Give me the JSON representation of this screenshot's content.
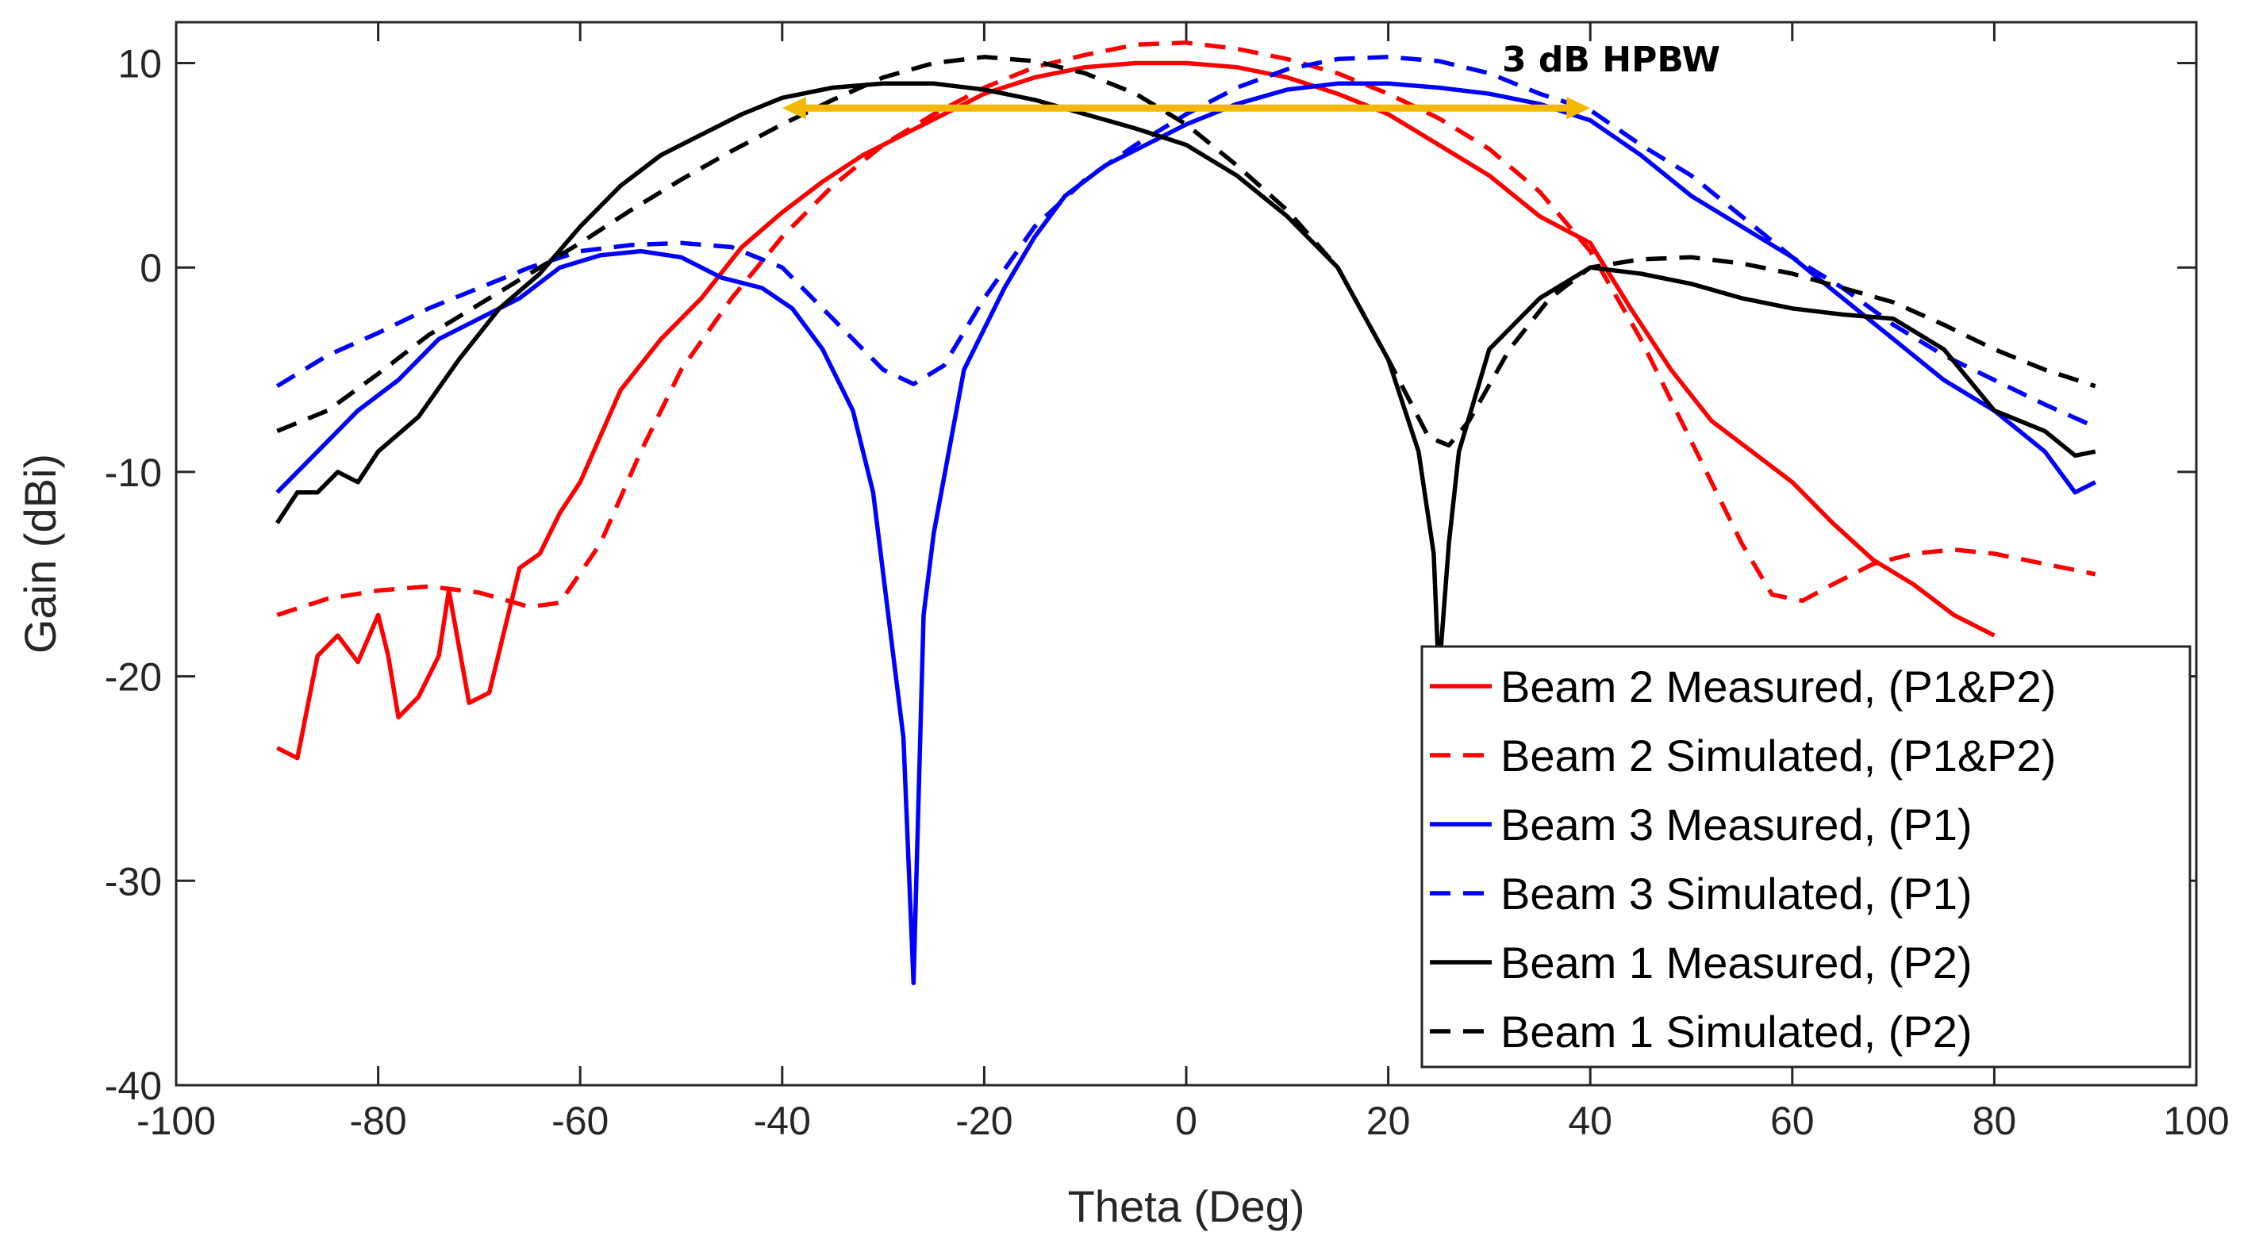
{
  "chart_data": {
    "type": "line",
    "title": "",
    "xlabel": "Theta (Deg)",
    "ylabel": "Gain (dBi)",
    "xlim": [
      -100,
      100
    ],
    "ylim": [
      -40,
      12
    ],
    "xticks": [
      -100,
      -80,
      -60,
      -40,
      -20,
      0,
      20,
      40,
      60,
      80,
      100
    ],
    "yticks": [
      -40,
      -30,
      -20,
      -10,
      0,
      10
    ],
    "grid": false,
    "legend_position": "bottom-right",
    "annotation": {
      "text": "3 dB HPBW",
      "x_start": -40,
      "x_end": 40,
      "y": 7.8,
      "color": "#f5b800"
    },
    "series": [
      {
        "name": "Beam 2 Measured, (P1&P2)",
        "color": "#ff0000",
        "style": "solid",
        "x": [
          -90,
          -88,
          -86,
          -84,
          -82,
          -80,
          -79,
          -78,
          -76,
          -74,
          -73,
          -71,
          -69,
          -66,
          -64,
          -62,
          -60,
          -56,
          -52,
          -48,
          -44,
          -40,
          -36,
          -32,
          -28,
          -24,
          -20,
          -15,
          -10,
          -5,
          0,
          5,
          10,
          15,
          20,
          25,
          30,
          35,
          40,
          44,
          48,
          52,
          56,
          60,
          64,
          68,
          72,
          76,
          80
        ],
        "y": [
          -23.5,
          -24,
          -19,
          -18,
          -19.3,
          -17,
          -19,
          -22,
          -21,
          -19,
          -15.8,
          -21.3,
          -20.8,
          -14.7,
          -14,
          -12,
          -10.5,
          -6,
          -3.5,
          -1.5,
          1,
          2.7,
          4.2,
          5.5,
          6.5,
          7.5,
          8.5,
          9.3,
          9.8,
          10,
          10,
          9.8,
          9.3,
          8.5,
          7.5,
          6,
          4.5,
          2.5,
          1.2,
          -2,
          -5,
          -7.5,
          -9,
          -10.5,
          -12.5,
          -14.3,
          -15.5,
          -17,
          -18
        ]
      },
      {
        "name": "Beam 2 Simulated, (P1&P2)",
        "color": "#ff0000",
        "style": "dashed",
        "x": [
          -90,
          -85,
          -80,
          -75,
          -70,
          -65,
          -62,
          -58,
          -54,
          -50,
          -45,
          -40,
          -35,
          -30,
          -25,
          -20,
          -15,
          -10,
          -5,
          0,
          5,
          10,
          15,
          20,
          25,
          30,
          35,
          40,
          45,
          50,
          55,
          58,
          61,
          64,
          68,
          72,
          76,
          80,
          85,
          90
        ],
        "y": [
          -17,
          -16.2,
          -15.8,
          -15.6,
          -15.9,
          -16.6,
          -16.4,
          -13.5,
          -9,
          -5,
          -1.5,
          1.5,
          4,
          6,
          7.5,
          8.8,
          9.8,
          10.4,
          10.9,
          11,
          10.7,
          10.2,
          9.5,
          8.5,
          7.3,
          5.8,
          3.7,
          0.8,
          -3.5,
          -8.5,
          -13.5,
          -16,
          -16.3,
          -15.5,
          -14.5,
          -14,
          -13.8,
          -14,
          -14.5,
          -15
        ]
      },
      {
        "name": "Beam 3 Measured, (P1)",
        "color": "#0000ff",
        "style": "solid",
        "x": [
          -90,
          -86,
          -82,
          -78,
          -74,
          -70,
          -66,
          -62,
          -58,
          -54,
          -50,
          -46,
          -42,
          -39,
          -36,
          -33,
          -31,
          -29.5,
          -28,
          -27,
          -26,
          -25,
          -22,
          -18,
          -15,
          -12,
          -8,
          -4,
          0,
          5,
          10,
          15,
          20,
          25,
          30,
          35,
          40,
          45,
          50,
          55,
          60,
          65,
          70,
          75,
          80,
          85,
          88,
          90
        ],
        "y": [
          -11,
          -9,
          -7,
          -5.5,
          -3.5,
          -2.5,
          -1.5,
          0,
          0.6,
          0.8,
          0.5,
          -0.5,
          -1,
          -2,
          -4,
          -7,
          -11,
          -17,
          -23,
          -35,
          -17,
          -13,
          -5,
          -1,
          1.5,
          3.5,
          5,
          6,
          7,
          8,
          8.7,
          9,
          9,
          8.8,
          8.5,
          8,
          7.2,
          5.5,
          3.5,
          2,
          0.5,
          -1.5,
          -3.5,
          -5.5,
          -7,
          -9,
          -11,
          -10.5
        ]
      },
      {
        "name": "Beam 3 Simulated, (P1)",
        "color": "#0000ff",
        "style": "dashed",
        "x": [
          -90,
          -85,
          -80,
          -75,
          -70,
          -65,
          -60,
          -55,
          -50,
          -45,
          -40,
          -35,
          -30,
          -27,
          -24,
          -20,
          -15,
          -10,
          -5,
          0,
          5,
          10,
          15,
          20,
          25,
          30,
          35,
          40,
          45,
          50,
          55,
          60,
          65,
          70,
          75,
          80,
          85,
          90
        ],
        "y": [
          -5.8,
          -4.3,
          -3.2,
          -2,
          -1,
          0,
          0.8,
          1.1,
          1.2,
          1,
          0,
          -2.5,
          -5,
          -5.7,
          -4.8,
          -1.5,
          2,
          4.3,
          6,
          7.5,
          8.8,
          9.7,
          10.2,
          10.3,
          10.1,
          9.5,
          8.5,
          7.7,
          6,
          4.5,
          2.5,
          0.5,
          -1,
          -2.8,
          -4.3,
          -5.5,
          -6.7,
          -7.8
        ]
      },
      {
        "name": "Beam 1 Measured, (P2)",
        "color": "#000000",
        "style": "solid",
        "x": [
          -90,
          -88,
          -86,
          -84,
          -82,
          -80,
          -76,
          -72,
          -68,
          -64,
          -60,
          -56,
          -52,
          -48,
          -44,
          -40,
          -35,
          -30,
          -25,
          -20,
          -15,
          -10,
          -5,
          0,
          5,
          10,
          15,
          20,
          23,
          24.5,
          25,
          26,
          27,
          30,
          35,
          40,
          45,
          50,
          55,
          60,
          65,
          70,
          75,
          80,
          85,
          88,
          90
        ],
        "y": [
          -12.5,
          -11,
          -11,
          -10,
          -10.5,
          -9,
          -7.3,
          -4.5,
          -2,
          -0.3,
          2,
          4,
          5.5,
          6.5,
          7.5,
          8.3,
          8.8,
          9,
          9,
          8.7,
          8.2,
          7.5,
          6.8,
          6,
          4.5,
          2.5,
          0,
          -4.5,
          -9,
          -14,
          -20,
          -13.5,
          -9,
          -4,
          -1.5,
          0,
          -0.3,
          -0.8,
          -1.5,
          -2,
          -2.3,
          -2.5,
          -4,
          -7,
          -8,
          -9.2,
          -9
        ]
      },
      {
        "name": "Beam 1 Simulated, (P2)",
        "color": "#000000",
        "style": "dashed",
        "x": [
          -90,
          -85,
          -80,
          -75,
          -70,
          -65,
          -60,
          -55,
          -50,
          -45,
          -40,
          -35,
          -30,
          -25,
          -20,
          -15,
          -10,
          -5,
          0,
          5,
          10,
          15,
          20,
          24,
          26,
          28,
          32,
          36,
          40,
          45,
          50,
          55,
          60,
          65,
          70,
          75,
          80,
          85,
          90
        ],
        "y": [
          -8,
          -7,
          -5.2,
          -3.3,
          -1.8,
          -0.3,
          1.2,
          2.8,
          4.3,
          5.7,
          7,
          8.2,
          9.3,
          10,
          10.3,
          10.1,
          9.5,
          8.5,
          7,
          5,
          2.8,
          0,
          -4.5,
          -8.3,
          -8.7,
          -7.5,
          -4,
          -1.5,
          0,
          0.4,
          0.5,
          0.2,
          -0.3,
          -1,
          -1.7,
          -2.8,
          -4,
          -5,
          -5.8
        ]
      }
    ]
  }
}
